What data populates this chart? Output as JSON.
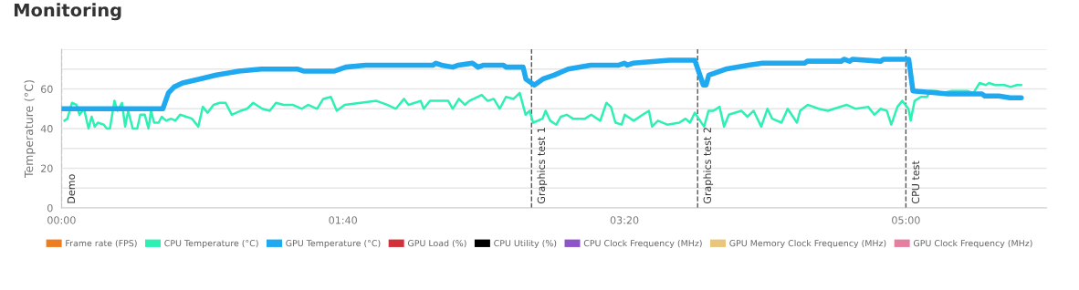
{
  "chart_data": {
    "type": "line",
    "title": "Monitoring",
    "ylabel": "Temperature (°C)",
    "xlim": [
      0,
      350
    ],
    "xticks": [
      {
        "value": 0,
        "label": "00:00"
      },
      {
        "value": 100,
        "label": "01:40"
      },
      {
        "value": 200,
        "label": "03:20"
      },
      {
        "value": 300,
        "label": "05:00"
      }
    ],
    "ylim": [
      0,
      80
    ],
    "yticks": [
      0,
      {
        "value": 10,
        "label": null
      },
      20,
      {
        "value": 30,
        "label": null
      },
      40,
      {
        "value": 50,
        "label": null
      },
      60,
      {
        "value": 70,
        "label": null
      },
      {
        "value": 80,
        "label": null
      }
    ],
    "grid": "y",
    "legend": "bottom",
    "marker": "none",
    "line_style": "solid",
    "ref_lines": [
      {
        "axis": "x",
        "value": 0,
        "label": "Demo",
        "line_style": "dashed",
        "color": "#555555"
      },
      {
        "axis": "x",
        "value": 167,
        "label": "Graphics test 1",
        "line_style": "dashed",
        "color": "#555555"
      },
      {
        "axis": "x",
        "value": 226,
        "label": "Graphics test 2",
        "line_style": "dashed",
        "color": "#555555"
      },
      {
        "axis": "x",
        "value": 300,
        "label": "CPU test",
        "line_style": "dashed",
        "color": "#555555"
      }
    ],
    "series": [
      {
        "name": "Frame rate (FPS)",
        "color": "#ee7d22"
      },
      {
        "name": "CPU Temperature (°C)",
        "color": "#2ef0b4",
        "x": [
          1.0,
          2.1,
          3.7,
          5.3,
          6.4,
          8.0,
          9.6,
          10.7,
          11.8,
          12.9,
          15.0,
          16.1,
          17.2,
          18.8,
          19.9,
          21.5,
          22.6,
          23.7,
          25.3,
          26.9,
          28.0,
          29.6,
          30.9,
          31.8,
          32.9,
          34.5,
          35.6,
          37.2,
          38.9,
          40.5,
          42.1,
          44.3,
          46.4,
          48.6,
          50.2,
          51.9,
          54.0,
          56.2,
          58.3,
          60.5,
          63.7,
          65.9,
          68.1,
          71.3,
          74.0,
          76.2,
          78.9,
          82.1,
          85.4,
          87.6,
          90.8,
          93.0,
          95.7,
          97.8,
          100.6,
          111.9,
          115.7,
          118.8,
          121.7,
          123.3,
          127.6,
          128.7,
          130.9,
          135.2,
          137.4,
          139.0,
          141.2,
          143.3,
          144.9,
          149.3,
          151.4,
          153.6,
          155.7,
          157.9,
          160.6,
          162.8,
          164.9,
          166.3,
          167.6,
          170.9,
          172.0,
          173.6,
          175.8,
          177.4,
          179.5,
          181.7,
          186.0,
          188.2,
          191.4,
          193.6,
          195.2,
          196.8,
          199.0,
          200.1,
          203.3,
          206.5,
          208.7,
          209.8,
          211.9,
          215.2,
          219.5,
          221.7,
          223.3,
          225.0,
          228.3,
          229.9,
          231.6,
          233.8,
          235.4,
          237.1,
          241.5,
          243.7,
          245.9,
          248.6,
          250.8,
          252.5,
          255.8,
          258.0,
          261.3,
          262.4,
          265.1,
          269.0,
          272.3,
          274.5,
          278.9,
          282.2,
          286.6,
          288.8,
          291.0,
          293.2,
          294.8,
          297.0,
          298.7,
          300.9,
          301.7,
          303.1,
          305.3,
          307.5,
          308.6,
          310.8,
          313.0,
          316.3,
          321.8,
          324.0,
          326.2,
          328.4,
          329.5,
          331.7,
          335.0,
          337.2,
          339.4,
          341.0
        ],
        "values": [
          44,
          45,
          53,
          52,
          47,
          50,
          40,
          46,
          41,
          43,
          42,
          40,
          40,
          54,
          49,
          53,
          41,
          49,
          40,
          40,
          47,
          47,
          40,
          49,
          43,
          43,
          46,
          44,
          45,
          44,
          47,
          46,
          45,
          41,
          51,
          48,
          52,
          53,
          53,
          47,
          49,
          50,
          53,
          50,
          49,
          53,
          52,
          52,
          50,
          52,
          50,
          55,
          56,
          49,
          52,
          54,
          52,
          50,
          55,
          52,
          54,
          50,
          54,
          54,
          54,
          50,
          55,
          52,
          54,
          57,
          54,
          55,
          50,
          56,
          55,
          58,
          47,
          49,
          43,
          45,
          49,
          44,
          42,
          46,
          47,
          45,
          45,
          47,
          44,
          53,
          51,
          43,
          42,
          47,
          44,
          47,
          49,
          41,
          44,
          42,
          43,
          45,
          43,
          48,
          41,
          49,
          49,
          51,
          41,
          47,
          49,
          46,
          49,
          41,
          50,
          45,
          43,
          50,
          43,
          49,
          52,
          50,
          49,
          50,
          52,
          50,
          51,
          47,
          50,
          49,
          42,
          51,
          54,
          50,
          44,
          54,
          56,
          56,
          59,
          59,
          58,
          59,
          59,
          58,
          63,
          62,
          63,
          62,
          62,
          61,
          62,
          62
        ]
      },
      {
        "name": "GPU Temperature (°C)",
        "color": "#1fa9f0",
        "x": [
          0,
          36,
          38,
          40,
          43,
          49,
          55,
          63,
          71,
          84,
          86,
          97,
          101,
          108,
          132,
          133,
          135,
          139,
          141,
          146,
          148,
          150,
          157,
          158,
          164,
          165,
          168,
          171,
          175,
          180,
          188,
          198,
          200,
          201,
          203,
          216,
          225,
          228,
          229,
          230,
          236,
          244,
          249,
          264,
          265,
          277,
          278,
          280,
          281,
          291,
          292,
          301,
          302.5,
          315,
          327,
          328,
          333,
          337,
          341
        ],
        "values": [
          50,
          50,
          58,
          61,
          63,
          65,
          67,
          69,
          70,
          70,
          69,
          69,
          71,
          72,
          72,
          73,
          72,
          71,
          72,
          73,
          71,
          72,
          72,
          71,
          71,
          65,
          62,
          65,
          67,
          70,
          72,
          72,
          73,
          72,
          73,
          74.5,
          74.5,
          62,
          62,
          67,
          70,
          72,
          73,
          73,
          74,
          74,
          75,
          74,
          75,
          74,
          75,
          75,
          59,
          57.5,
          57.5,
          56.5,
          56.5,
          55.5,
          55.5
        ]
      },
      {
        "name": "GPU Load (%)",
        "color": "#d1313a"
      },
      {
        "name": "CPU Utility (%)",
        "color": "#000000"
      },
      {
        "name": "CPU Clock Frequency (MHz)",
        "color": "#8e55c8"
      },
      {
        "name": "GPU Memory Clock Frequency (MHz)",
        "color": "#e8c77d"
      },
      {
        "name": "GPU Clock Frequency (MHz)",
        "color": "#e57fa0"
      }
    ]
  }
}
